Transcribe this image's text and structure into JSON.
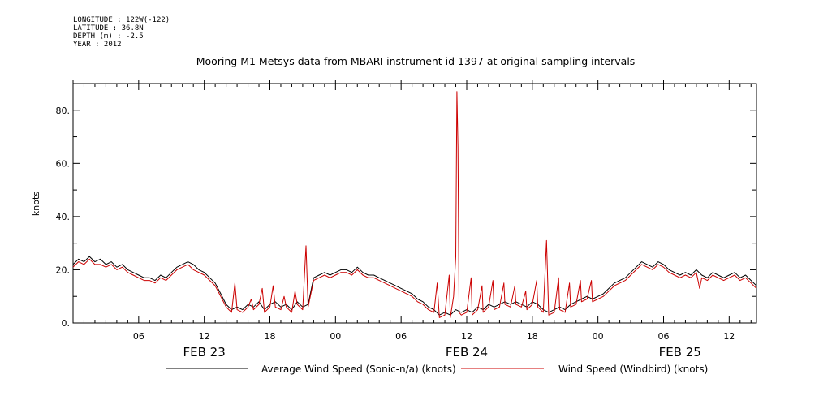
{
  "meta": {
    "longitude": "LONGITUDE : 122W(-122)",
    "latitude": "LATITUDE : 36.8N",
    "depth": "DEPTH (m) : -2.5",
    "year": "YEAR : 2012"
  },
  "chart_data": {
    "type": "line",
    "title": "Mooring M1 Metsys data from MBARI instrument id 1397 at original sampling intervals",
    "ylabel": "knots",
    "xlabel": "",
    "x_range_hours": [
      0,
      62.5
    ],
    "ylim": [
      0,
      90
    ],
    "y_ticks": [
      0,
      20,
      40,
      60,
      80
    ],
    "y_tick_labels": [
      "0.",
      "20.",
      "40.",
      "60.",
      "80."
    ],
    "x_ticks": [
      {
        "h": 6,
        "label": "06"
      },
      {
        "h": 12,
        "label": "12"
      },
      {
        "h": 18,
        "label": "18"
      },
      {
        "h": 24,
        "label": "00"
      },
      {
        "h": 30,
        "label": "06"
      },
      {
        "h": 36,
        "label": "12"
      },
      {
        "h": 42,
        "label": "18"
      },
      {
        "h": 48,
        "label": "00"
      },
      {
        "h": 54,
        "label": "06"
      },
      {
        "h": 60,
        "label": "12"
      }
    ],
    "date_labels": [
      {
        "h": 12,
        "label": "FEB 23"
      },
      {
        "h": 36,
        "label": "FEB 24"
      },
      {
        "h": 55.5,
        "label": "FEB 25"
      }
    ],
    "series": [
      {
        "name": "Average Wind Speed (Sonic-n/a) (knots)",
        "color": "#000000",
        "points": [
          [
            0,
            22
          ],
          [
            0.5,
            24
          ],
          [
            1,
            23
          ],
          [
            1.5,
            25
          ],
          [
            2,
            23
          ],
          [
            2.5,
            24
          ],
          [
            3,
            22
          ],
          [
            3.5,
            23
          ],
          [
            4,
            21
          ],
          [
            4.5,
            22
          ],
          [
            5,
            20
          ],
          [
            5.5,
            19
          ],
          [
            6,
            18
          ],
          [
            6.5,
            17
          ],
          [
            7,
            17
          ],
          [
            7.5,
            16
          ],
          [
            8,
            18
          ],
          [
            8.5,
            17
          ],
          [
            9,
            19
          ],
          [
            9.5,
            21
          ],
          [
            10,
            22
          ],
          [
            10.5,
            23
          ],
          [
            11,
            22
          ],
          [
            11.5,
            20
          ],
          [
            12,
            19
          ],
          [
            12.5,
            17
          ],
          [
            13,
            15
          ],
          [
            13.5,
            11
          ],
          [
            14,
            7
          ],
          [
            14.5,
            5
          ],
          [
            15,
            6
          ],
          [
            15.5,
            5
          ],
          [
            16,
            7
          ],
          [
            16.5,
            6
          ],
          [
            17,
            8
          ],
          [
            17.5,
            5
          ],
          [
            18,
            7
          ],
          [
            18.5,
            8
          ],
          [
            19,
            6
          ],
          [
            19.5,
            7
          ],
          [
            20,
            5
          ],
          [
            20.5,
            8
          ],
          [
            21,
            6
          ],
          [
            21.5,
            7
          ],
          [
            22,
            17
          ],
          [
            22.5,
            18
          ],
          [
            23,
            19
          ],
          [
            23.5,
            18
          ],
          [
            24,
            19
          ],
          [
            24.5,
            20
          ],
          [
            25,
            20
          ],
          [
            25.5,
            19
          ],
          [
            26,
            21
          ],
          [
            26.5,
            19
          ],
          [
            27,
            18
          ],
          [
            27.5,
            18
          ],
          [
            28,
            17
          ],
          [
            28.5,
            16
          ],
          [
            29,
            15
          ],
          [
            29.5,
            14
          ],
          [
            30,
            13
          ],
          [
            30.5,
            12
          ],
          [
            31,
            11
          ],
          [
            31.5,
            9
          ],
          [
            32,
            8
          ],
          [
            32.5,
            6
          ],
          [
            33,
            5
          ],
          [
            33.5,
            3
          ],
          [
            34,
            4
          ],
          [
            34.5,
            3
          ],
          [
            35,
            5
          ],
          [
            35.5,
            4
          ],
          [
            36,
            5
          ],
          [
            36.5,
            4
          ],
          [
            37,
            6
          ],
          [
            37.5,
            5
          ],
          [
            38,
            7
          ],
          [
            38.5,
            6
          ],
          [
            39,
            7
          ],
          [
            39.5,
            8
          ],
          [
            40,
            7
          ],
          [
            40.5,
            8
          ],
          [
            41,
            7
          ],
          [
            41.5,
            6
          ],
          [
            42,
            8
          ],
          [
            42.5,
            7
          ],
          [
            43,
            5
          ],
          [
            43.5,
            4
          ],
          [
            44,
            5
          ],
          [
            44.5,
            6
          ],
          [
            45,
            5
          ],
          [
            45.5,
            7
          ],
          [
            46,
            8
          ],
          [
            46.5,
            9
          ],
          [
            47,
            10
          ],
          [
            47.5,
            9
          ],
          [
            48,
            10
          ],
          [
            48.5,
            11
          ],
          [
            49,
            13
          ],
          [
            49.5,
            15
          ],
          [
            50,
            16
          ],
          [
            50.5,
            17
          ],
          [
            51,
            19
          ],
          [
            51.5,
            21
          ],
          [
            52,
            23
          ],
          [
            52.5,
            22
          ],
          [
            53,
            21
          ],
          [
            53.5,
            23
          ],
          [
            54,
            22
          ],
          [
            54.5,
            20
          ],
          [
            55,
            19
          ],
          [
            55.5,
            18
          ],
          [
            56,
            19
          ],
          [
            56.5,
            18
          ],
          [
            57,
            20
          ],
          [
            57.5,
            18
          ],
          [
            58,
            17
          ],
          [
            58.5,
            19
          ],
          [
            59,
            18
          ],
          [
            59.5,
            17
          ],
          [
            60,
            18
          ],
          [
            60.5,
            19
          ],
          [
            61,
            17
          ],
          [
            61.5,
            18
          ],
          [
            62,
            16
          ],
          [
            62.5,
            14
          ]
        ]
      },
      {
        "name": "Wind Speed (Windbird) (knots)",
        "color": "#cc0000",
        "points": [
          [
            0,
            21
          ],
          [
            0.5,
            23
          ],
          [
            1,
            22
          ],
          [
            1.5,
            24
          ],
          [
            2,
            22
          ],
          [
            2.5,
            22
          ],
          [
            3,
            21
          ],
          [
            3.5,
            22
          ],
          [
            4,
            20
          ],
          [
            4.5,
            21
          ],
          [
            5,
            19
          ],
          [
            5.5,
            18
          ],
          [
            6,
            17
          ],
          [
            6.5,
            16
          ],
          [
            7,
            16
          ],
          [
            7.5,
            15
          ],
          [
            8,
            17
          ],
          [
            8.5,
            16
          ],
          [
            9,
            18
          ],
          [
            9.5,
            20
          ],
          [
            10,
            21
          ],
          [
            10.5,
            22
          ],
          [
            11,
            20
          ],
          [
            11.5,
            19
          ],
          [
            12,
            18
          ],
          [
            12.5,
            16
          ],
          [
            13,
            14
          ],
          [
            13.5,
            10
          ],
          [
            14,
            6
          ],
          [
            14.5,
            4
          ],
          [
            14.8,
            15
          ],
          [
            15,
            5
          ],
          [
            15.5,
            4
          ],
          [
            16,
            6
          ],
          [
            16.3,
            9
          ],
          [
            16.5,
            5
          ],
          [
            17,
            7
          ],
          [
            17.3,
            13
          ],
          [
            17.5,
            4
          ],
          [
            18,
            6
          ],
          [
            18.3,
            14
          ],
          [
            18.5,
            6
          ],
          [
            19,
            5
          ],
          [
            19.3,
            10
          ],
          [
            19.5,
            6
          ],
          [
            20,
            4
          ],
          [
            20.3,
            12
          ],
          [
            20.5,
            7
          ],
          [
            21,
            5
          ],
          [
            21.3,
            29
          ],
          [
            21.5,
            6
          ],
          [
            22,
            16
          ],
          [
            22.5,
            17
          ],
          [
            23,
            18
          ],
          [
            23.5,
            17
          ],
          [
            24,
            18
          ],
          [
            24.5,
            19
          ],
          [
            25,
            19
          ],
          [
            25.5,
            18
          ],
          [
            26,
            20
          ],
          [
            26.5,
            18
          ],
          [
            27,
            17
          ],
          [
            27.5,
            17
          ],
          [
            28,
            16
          ],
          [
            28.5,
            15
          ],
          [
            29,
            14
          ],
          [
            29.5,
            13
          ],
          [
            30,
            12
          ],
          [
            30.5,
            11
          ],
          [
            31,
            10
          ],
          [
            31.5,
            8
          ],
          [
            32,
            7
          ],
          [
            32.5,
            5
          ],
          [
            33,
            4
          ],
          [
            33.3,
            15
          ],
          [
            33.5,
            2
          ],
          [
            34,
            3
          ],
          [
            34.4,
            18
          ],
          [
            34.5,
            2
          ],
          [
            34.8,
            10
          ],
          [
            35,
            25
          ],
          [
            35.1,
            87
          ],
          [
            35.2,
            66
          ],
          [
            35.3,
            4
          ],
          [
            35.5,
            3
          ],
          [
            36,
            4
          ],
          [
            36.4,
            17
          ],
          [
            36.5,
            3
          ],
          [
            37,
            5
          ],
          [
            37.4,
            14
          ],
          [
            37.5,
            4
          ],
          [
            38,
            6
          ],
          [
            38.4,
            16
          ],
          [
            38.5,
            5
          ],
          [
            39,
            6
          ],
          [
            39.4,
            15
          ],
          [
            39.5,
            7
          ],
          [
            40,
            6
          ],
          [
            40.4,
            14
          ],
          [
            40.5,
            7
          ],
          [
            41,
            6
          ],
          [
            41.4,
            12
          ],
          [
            41.5,
            5
          ],
          [
            42,
            7
          ],
          [
            42.4,
            16
          ],
          [
            42.5,
            6
          ],
          [
            43,
            4
          ],
          [
            43.3,
            31
          ],
          [
            43.5,
            3
          ],
          [
            44,
            4
          ],
          [
            44.4,
            17
          ],
          [
            44.5,
            5
          ],
          [
            45,
            4
          ],
          [
            45.4,
            15
          ],
          [
            45.5,
            6
          ],
          [
            46,
            7
          ],
          [
            46.4,
            16
          ],
          [
            46.5,
            8
          ],
          [
            47,
            9
          ],
          [
            47.4,
            16
          ],
          [
            47.5,
            8
          ],
          [
            48,
            9
          ],
          [
            48.5,
            10
          ],
          [
            49,
            12
          ],
          [
            49.5,
            14
          ],
          [
            50,
            15
          ],
          [
            50.5,
            16
          ],
          [
            51,
            18
          ],
          [
            51.5,
            20
          ],
          [
            52,
            22
          ],
          [
            52.5,
            21
          ],
          [
            53,
            20
          ],
          [
            53.5,
            22
          ],
          [
            54,
            21
          ],
          [
            54.5,
            19
          ],
          [
            55,
            18
          ],
          [
            55.5,
            17
          ],
          [
            56,
            18
          ],
          [
            56.5,
            17
          ],
          [
            57,
            19
          ],
          [
            57.3,
            13
          ],
          [
            57.5,
            17
          ],
          [
            58,
            16
          ],
          [
            58.5,
            18
          ],
          [
            59,
            17
          ],
          [
            59.5,
            16
          ],
          [
            60,
            17
          ],
          [
            60.5,
            18
          ],
          [
            61,
            16
          ],
          [
            61.5,
            17
          ],
          [
            62,
            15
          ],
          [
            62.5,
            13
          ]
        ]
      }
    ]
  }
}
